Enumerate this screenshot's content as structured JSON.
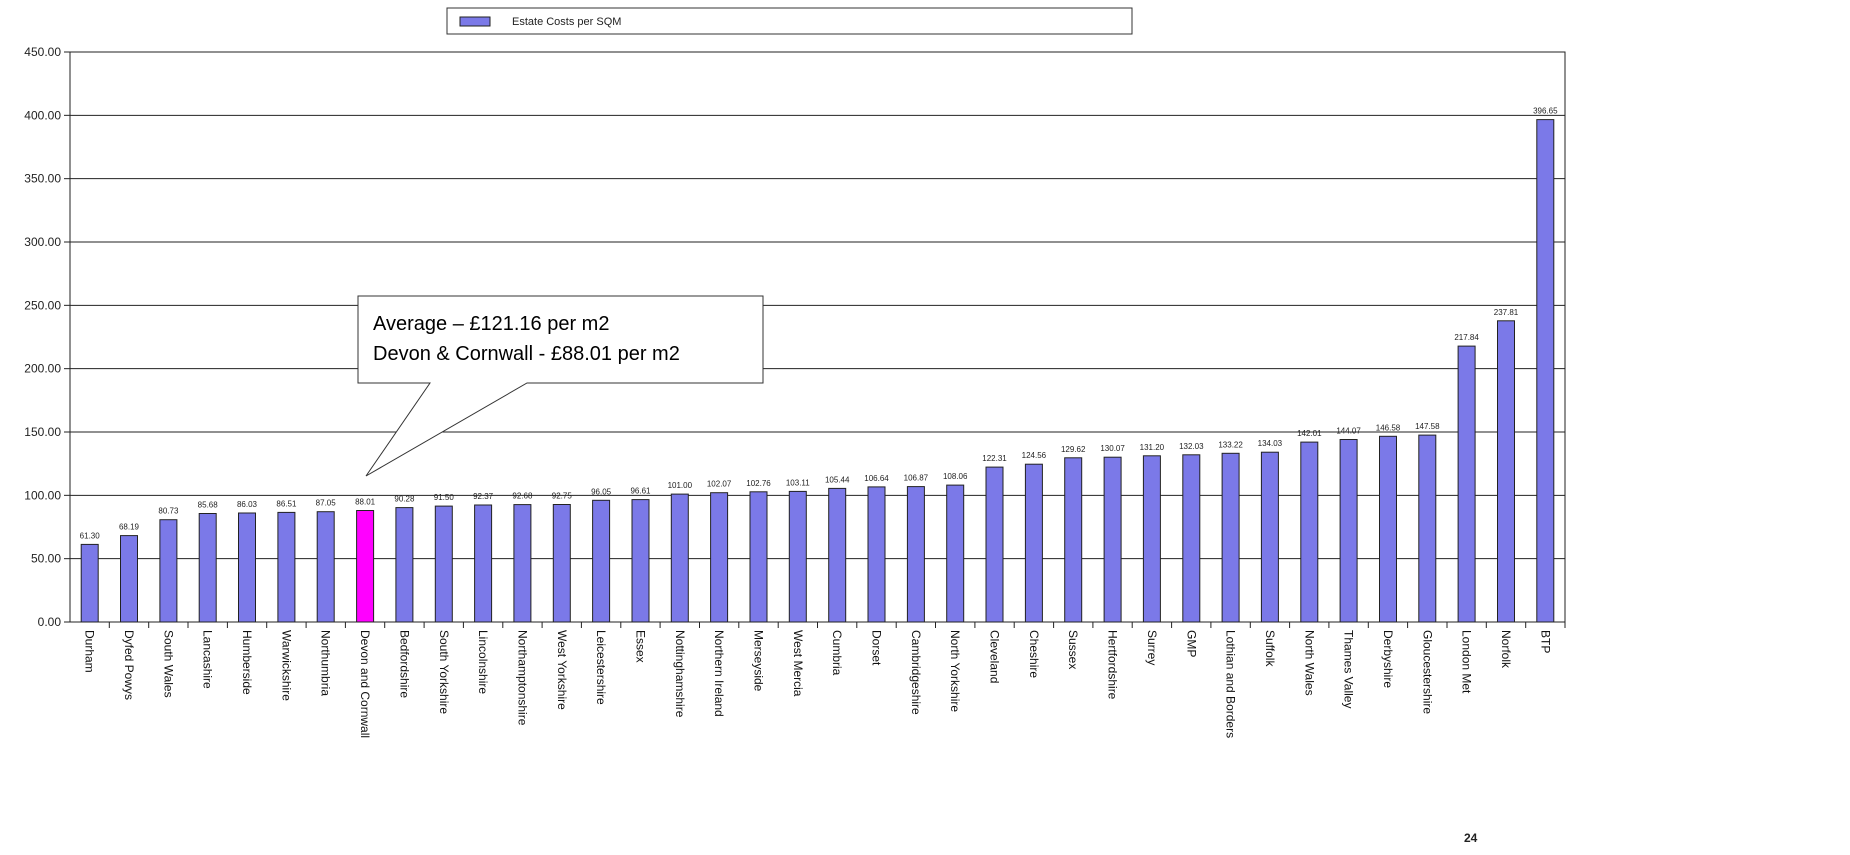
{
  "chart_data": {
    "type": "bar",
    "title": "",
    "xlabel": "",
    "ylabel": "",
    "ylim": [
      0,
      450
    ],
    "yticks": [
      "0.00",
      "50.00",
      "100.00",
      "150.00",
      "200.00",
      "250.00",
      "300.00",
      "350.00",
      "400.00",
      "450.00"
    ],
    "grid": true,
    "legend_position": "top-center",
    "categories": [
      "Durham",
      "Dyfed Powys",
      "South Wales",
      "Lancashire",
      "Humberside",
      "Warwickshire",
      "Northumbria",
      "Devon and Cornwall",
      "Bedfordshire",
      "South Yorkshire",
      "Lincolnshire",
      "Northamptonshire",
      "West Yorkshire",
      "Leicestershire",
      "Essex",
      "Nottinghamshire",
      "Northern Ireland",
      "Merseyside",
      "West Mercia",
      "Cumbria",
      "Dorset",
      "Cambridgeshire",
      "North Yorkshire",
      "Cleveland",
      "Cheshire",
      "Sussex",
      "Hertfordshire",
      "Surrey",
      "GMP",
      "Lothian and Borders",
      "Suffolk",
      "North Wales",
      "Thames Valley",
      "Derbyshire",
      "Gloucestershire",
      "London Met",
      "Norfolk",
      "BTP"
    ],
    "series": [
      {
        "name": "Estate Costs per SQM",
        "color": "#7b79e8",
        "values": [
          61.3,
          68.19,
          80.73,
          85.68,
          86.03,
          86.51,
          87.05,
          88.01,
          90.28,
          91.5,
          92.37,
          92.68,
          92.75,
          96.05,
          96.61,
          101.0,
          102.07,
          102.76,
          103.11,
          105.44,
          106.64,
          106.87,
          108.06,
          122.31,
          124.56,
          129.62,
          130.07,
          131.2,
          132.03,
          133.22,
          134.03,
          142.01,
          144.07,
          146.58,
          147.58,
          217.84,
          237.81,
          396.65
        ],
        "labels": [
          "61.30",
          "68.19",
          "80.73",
          "85.68",
          "86.03",
          "86.51",
          "87.05",
          "88.01",
          "90.28",
          "91.50",
          "92.37",
          "92.68",
          "92.75",
          "96.05",
          "96.61",
          "101.00",
          "102.07",
          "102.76",
          "103.11",
          "105.44",
          "106.64",
          "106.87",
          "108.06",
          "122.31",
          "124.56",
          "129.62",
          "130.07",
          "131.20",
          "132.03",
          "133.22",
          "134.03",
          "142.01",
          "144.07",
          "146.58",
          "147.58",
          "217.84",
          "237.81",
          "396.65"
        ]
      }
    ],
    "highlight": {
      "category": "Devon and Cornwall",
      "color": "#ff00ff"
    },
    "annotation": {
      "lines": [
        "Average – £121.16 per m2",
        "Devon & Cornwall -  £88.01 per m2"
      ]
    }
  },
  "footer": {
    "page_number": "24"
  }
}
